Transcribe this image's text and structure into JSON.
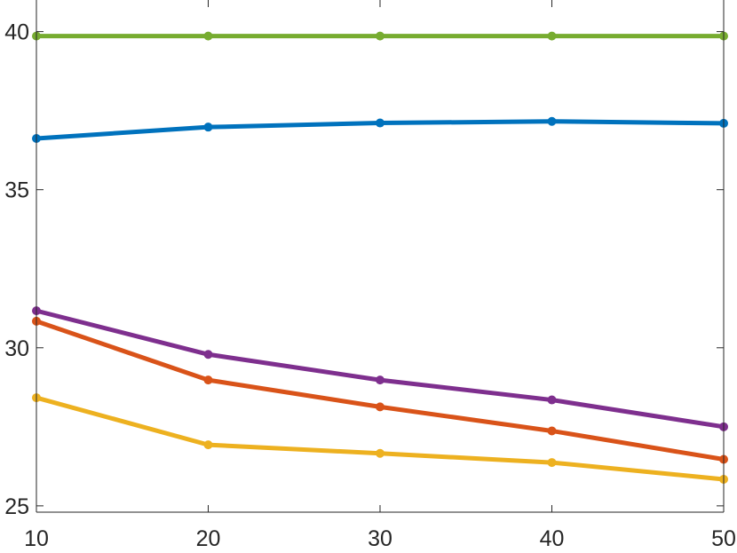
{
  "chart_data": {
    "type": "line",
    "title": "",
    "xlabel": "",
    "ylabel": "",
    "x": [
      10,
      20,
      30,
      40,
      50
    ],
    "xlim": [
      10,
      50
    ],
    "ylim": [
      24.8,
      41
    ],
    "x_ticks": [
      "10",
      "20",
      "30",
      "40",
      "50"
    ],
    "y_ticks": [
      "25",
      "30",
      "35",
      "40"
    ],
    "x_tick_values": [
      10,
      20,
      30,
      40,
      50
    ],
    "y_tick_values": [
      25,
      30,
      35,
      40
    ],
    "grid": false,
    "series": [
      {
        "color": "#77AC30",
        "values": [
          39.86,
          39.86,
          39.86,
          39.86,
          39.86
        ]
      },
      {
        "color": "#0072BD",
        "values": [
          36.62,
          36.98,
          37.11,
          37.16,
          37.1
        ]
      },
      {
        "color": "#7E2F8E",
        "values": [
          31.17,
          29.79,
          28.98,
          28.35,
          27.5
        ]
      },
      {
        "color": "#D95319",
        "values": [
          30.84,
          28.98,
          28.13,
          27.37,
          26.47
        ]
      },
      {
        "color": "#EDB120",
        "values": [
          28.42,
          26.93,
          26.66,
          26.37,
          25.84
        ]
      }
    ]
  }
}
